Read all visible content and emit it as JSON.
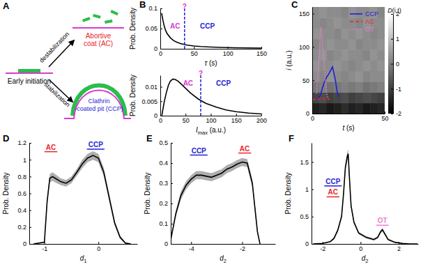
{
  "diagram": {
    "panel": "A",
    "initiation": "Early initiation",
    "destabilization": "destabilization",
    "stabilization": "stabilization",
    "abortive": [
      "Abortive",
      "coat (AC)"
    ],
    "abortive_color": "#e8272a",
    "ccp": [
      "Clathrin",
      "-coated pit (CCP)"
    ],
    "ccp_color": "#1f1fd6"
  },
  "chart_data": [
    {
      "type": "line",
      "panel": "B",
      "xlabel": [
        {
          "text": "τ",
          "style": "italic"
        },
        {
          "text": " (s)"
        }
      ],
      "ylabel": "Prob. Density",
      "xlim": [
        0,
        150
      ],
      "xticks": [
        0,
        50,
        100,
        150
      ],
      "ylim": [
        0,
        0.1
      ],
      "yticks": [
        0,
        0.05,
        0.1
      ],
      "threshold": 36,
      "threshold_color": "#1f1fd6",
      "series": [
        {
          "color": "#000000",
          "x": [
            2,
            4,
            6,
            8,
            10,
            15,
            20,
            25,
            30,
            40,
            50,
            60,
            75,
            90,
            110,
            130,
            150
          ],
          "values": [
            0.088,
            0.07,
            0.055,
            0.045,
            0.038,
            0.027,
            0.02,
            0.016,
            0.013,
            0.009,
            0.007,
            0.0055,
            0.0042,
            0.0034,
            0.0027,
            0.0022,
            0.0018
          ]
        }
      ],
      "annotations": [
        {
          "text": "AC",
          "x": 22,
          "y": 0.05,
          "color": "#d83ad0"
        },
        {
          "text": "CCP",
          "x": 70,
          "y": 0.05,
          "color": "#1f1fd6"
        },
        {
          "text": "?",
          "x": 36,
          "y": 0.098,
          "color": "#d83ad0"
        }
      ]
    },
    {
      "type": "line",
      "xlabel": [
        {
          "text": "I",
          "style": "italic"
        },
        {
          "text": "max",
          "style": "sub"
        },
        {
          "text": " (a.u.)"
        }
      ],
      "ylabel": "Prob. Density",
      "xlim": [
        0,
        200
      ],
      "xticks": [
        0,
        50,
        100,
        150,
        200
      ],
      "ylim": [
        0,
        0.014
      ],
      "yticks": [
        0,
        0.005,
        0.01
      ],
      "threshold": 80,
      "threshold_color": "#1f1fd6",
      "series": [
        {
          "color": "#000000",
          "x": [
            3,
            5,
            8,
            12,
            16,
            20,
            25,
            30,
            35,
            40,
            50,
            60,
            75,
            90,
            110,
            130,
            150,
            175,
            200
          ],
          "values": [
            0.0,
            0.002,
            0.005,
            0.008,
            0.0105,
            0.012,
            0.0127,
            0.0125,
            0.012,
            0.0112,
            0.0095,
            0.0078,
            0.0058,
            0.0043,
            0.003,
            0.002,
            0.0014,
            0.0009,
            0.0006
          ]
        }
      ],
      "annotations": [
        {
          "text": "AC",
          "x": 55,
          "y": 0.0105,
          "color": "#d83ad0"
        },
        {
          "text": "CCP",
          "x": 125,
          "y": 0.0105,
          "color": "#1f1fd6"
        },
        {
          "text": "?",
          "x": 80,
          "y": 0.0137,
          "color": "#d83ad0"
        }
      ]
    },
    {
      "type": "heatmap",
      "panel": "C",
      "xlabel": [
        {
          "text": "t",
          "style": "italic"
        },
        {
          "text": " (s)"
        }
      ],
      "ylabel": [
        {
          "text": "i",
          "style": "italic"
        },
        {
          "text": " (a.u.)"
        }
      ],
      "xlim": [
        0,
        50
      ],
      "xticks": [
        0,
        50
      ],
      "ylim": [
        0,
        160
      ],
      "yticks": [
        0,
        50,
        100,
        150
      ],
      "cells": {
        "x_edges": [
          0,
          5,
          10,
          15,
          20,
          25,
          30,
          35,
          40,
          45,
          50
        ],
        "y_edges": [
          0,
          16,
          32,
          48,
          64,
          80,
          96,
          112,
          128,
          144,
          160
        ],
        "values": [
          [
            -1.5,
            -1.4,
            -1.6,
            -1.5,
            -1.3,
            -1.5,
            -1.4,
            -1.6,
            -1.5,
            -1.4
          ],
          [
            -0.9,
            -0.8,
            -1.0,
            -0.9,
            -0.8,
            -1.0,
            -0.9,
            -0.8,
            -0.9,
            -1.0
          ],
          [
            -0.1,
            0.0,
            -0.2,
            -0.1,
            0.0,
            -0.1,
            0.0,
            -0.2,
            -0.1,
            0.0
          ],
          [
            0.2,
            0.1,
            0.3,
            0.2,
            0.1,
            0.2,
            0.3,
            0.1,
            0.2,
            0.2
          ],
          [
            0.3,
            0.2,
            0.2,
            0.3,
            0.2,
            0.1,
            0.2,
            0.3,
            0.2,
            0.3
          ],
          [
            0.2,
            0.3,
            0.1,
            0.2,
            0.3,
            0.2,
            0.2,
            0.1,
            0.3,
            0.2
          ],
          [
            0.1,
            0.2,
            0.3,
            0.2,
            0.2,
            0.3,
            0.1,
            0.2,
            0.2,
            0.3
          ],
          [
            0.3,
            0.2,
            0.2,
            0.1,
            0.3,
            0.2,
            0.3,
            0.2,
            0.1,
            0.2
          ],
          [
            0.2,
            0.1,
            0.2,
            0.3,
            0.2,
            0.2,
            0.1,
            0.3,
            0.2,
            0.2
          ],
          [
            0.2,
            0.3,
            0.2,
            0.2,
            0.1,
            0.3,
            0.2,
            0.2,
            0.3,
            0.1
          ]
        ]
      },
      "colorbar": {
        "label": [
          {
            "text": "D",
            "style": "italic"
          },
          {
            "text": "(i,t)"
          }
        ],
        "range": [
          -2,
          2
        ],
        "ticks": [
          -2,
          -1,
          0,
          1,
          2
        ]
      },
      "legend": "upper right",
      "series": [
        {
          "name": "CCP",
          "color": "#1f1fd6",
          "line_style": "solid",
          "x": [
            4,
            5,
            6,
            7,
            8,
            9,
            10,
            11,
            12,
            13,
            14,
            15,
            16,
            17,
            18
          ],
          "values": [
            22,
            25,
            30,
            38,
            45,
            50,
            55,
            58,
            62,
            66,
            70,
            60,
            50,
            35,
            25
          ]
        },
        {
          "name": "AC",
          "color": "#e8272a",
          "line_style": "dashed",
          "x": [
            0,
            2,
            4,
            6,
            8,
            10,
            12
          ],
          "values": [
            20,
            22,
            21,
            24,
            22,
            23,
            21
          ]
        },
        {
          "name": "OT",
          "color": "#ee7fcf",
          "line_style": "dotted",
          "x": [
            3,
            4,
            5,
            6,
            7,
            8,
            9,
            10,
            11
          ],
          "values": [
            30,
            60,
            95,
            130,
            110,
            80,
            50,
            30,
            22
          ]
        }
      ]
    },
    {
      "type": "line",
      "panel": "D",
      "xlabel": [
        {
          "text": "d",
          "style": "italic"
        },
        {
          "text": "1",
          "style": "sub"
        }
      ],
      "ylabel": "Prob. Density",
      "xlim": [
        -1.28,
        0.72
      ],
      "xticks": [
        -1,
        0
      ],
      "ylim": [
        0,
        1.2
      ],
      "yticks": [
        0,
        0.2,
        0.4,
        0.6,
        0.8,
        1,
        1.2
      ],
      "series": [
        {
          "color": "#000000",
          "x": [
            -1.2,
            -1.0,
            -0.95,
            -0.9,
            -0.85,
            -0.8,
            -0.7,
            -0.6,
            -0.5,
            -0.4,
            -0.3,
            -0.2,
            -0.1,
            0,
            0.1,
            0.2,
            0.3,
            0.4,
            0.5,
            0.6
          ],
          "values": [
            0,
            0.02,
            0.5,
            0.78,
            0.8,
            0.78,
            0.74,
            0.72,
            0.76,
            0.85,
            0.95,
            1.02,
            1.05,
            1.02,
            0.85,
            0.55,
            0.25,
            0.08,
            0.01,
            0
          ],
          "error": [
            0,
            0.01,
            0.04,
            0.05,
            0.05,
            0.05,
            0.04,
            0.04,
            0.04,
            0.04,
            0.05,
            0.05,
            0.05,
            0.05,
            0.05,
            0.04,
            0.03,
            0.02,
            0.01,
            0
          ]
        }
      ],
      "annotations": [
        {
          "text": "AC",
          "x": -0.88,
          "y": 1.12,
          "color": "#e8272a"
        },
        {
          "text": "CCP",
          "x": -0.05,
          "y": 1.15,
          "color": "#1f1fd6"
        }
      ]
    },
    {
      "type": "line",
      "panel": "E",
      "xlabel": [
        {
          "text": "d",
          "style": "italic"
        },
        {
          "text": "2",
          "style": "sub"
        }
      ],
      "ylabel": "Prob. Density",
      "xlim": [
        -4.8,
        -0.7
      ],
      "xticks": [
        -4,
        -2
      ],
      "ylim": [
        0,
        0.5
      ],
      "yticks": [
        0,
        0.1,
        0.2,
        0.3,
        0.4,
        0.5
      ],
      "series": [
        {
          "color": "#000000",
          "x": [
            -4.8,
            -4.6,
            -4.4,
            -4.2,
            -4,
            -3.8,
            -3.6,
            -3.4,
            -3.2,
            -3,
            -2.8,
            -2.6,
            -2.4,
            -2.2,
            -2,
            -1.8,
            -1.6,
            -1.5,
            -1.4,
            -1.3
          ],
          "values": [
            0.02,
            0.15,
            0.24,
            0.29,
            0.32,
            0.34,
            0.34,
            0.335,
            0.33,
            0.34,
            0.35,
            0.37,
            0.38,
            0.395,
            0.405,
            0.4,
            0.3,
            0.18,
            0.06,
            0.0
          ],
          "error": [
            0.005,
            0.015,
            0.02,
            0.02,
            0.02,
            0.02,
            0.02,
            0.02,
            0.02,
            0.02,
            0.02,
            0.02,
            0.02,
            0.02,
            0.02,
            0.02,
            0.02,
            0.015,
            0.01,
            0.0
          ]
        }
      ],
      "annotations": [
        {
          "text": "CCP",
          "x": -3.7,
          "y": 0.45,
          "color": "#1f1fd6"
        },
        {
          "text": "AC",
          "x": -1.9,
          "y": 0.46,
          "color": "#e8272a"
        }
      ]
    },
    {
      "type": "line",
      "panel": "F",
      "xlabel": [
        {
          "text": "d",
          "style": "italic"
        },
        {
          "text": "2",
          "style": "sub"
        }
      ],
      "ylabel": "Prob. Density",
      "xlim": [
        -2.58,
        3.03
      ],
      "xticks": [
        -2,
        0,
        2
      ],
      "ylim": [
        0,
        1.85
      ],
      "yticks": [
        0,
        0.5,
        1,
        1.5
      ],
      "series": [
        {
          "color": "#000000",
          "x": [
            -2.5,
            -2,
            -1.6,
            -1.4,
            -1.2,
            -1.0,
            -0.9,
            -0.8,
            -0.7,
            -0.65,
            -0.6,
            -0.5,
            -0.35,
            -0.1,
            0.3,
            0.7,
            0.9,
            1.05,
            1.15,
            1.25,
            1.45,
            1.8,
            2.2,
            2.6,
            3.0
          ],
          "values": [
            0,
            0.01,
            0.04,
            0.1,
            0.25,
            0.5,
            0.9,
            1.4,
            1.6,
            1.65,
            1.3,
            0.7,
            0.4,
            0.2,
            0.12,
            0.08,
            0.12,
            0.22,
            0.26,
            0.2,
            0.08,
            0.03,
            0.01,
            0,
            0
          ],
          "error": [
            0,
            0.005,
            0.01,
            0.02,
            0.03,
            0.04,
            0.05,
            0.07,
            0.08,
            0.08,
            0.07,
            0.05,
            0.03,
            0.02,
            0.02,
            0.02,
            0.02,
            0.03,
            0.03,
            0.03,
            0.02,
            0.01,
            0.005,
            0,
            0
          ]
        }
      ],
      "annotations": [
        {
          "text": "CCP",
          "x": -1.45,
          "y": 1.1,
          "color": "#1f1fd6"
        },
        {
          "text": "AC",
          "x": -1.45,
          "y": 0.9,
          "color": "#e8272a"
        },
        {
          "text": "OT",
          "x": 1.15,
          "y": 0.38,
          "color": "#ee7fcf"
        }
      ]
    }
  ]
}
